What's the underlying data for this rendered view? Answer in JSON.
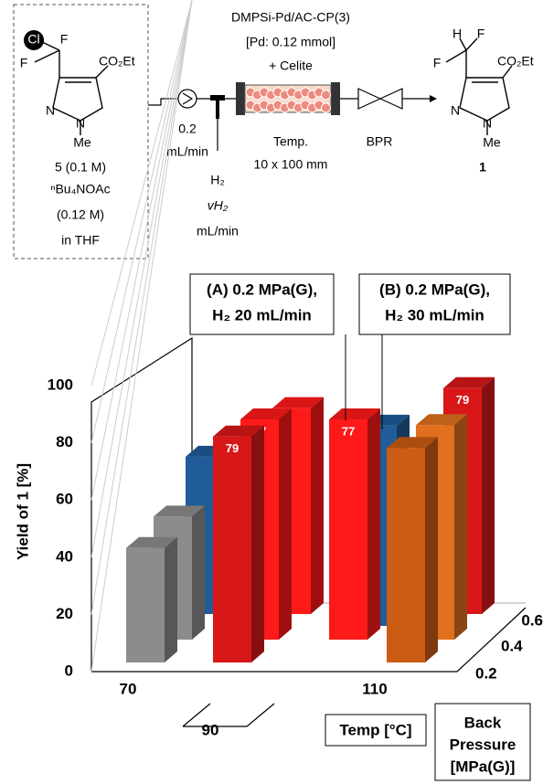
{
  "scheme": {
    "catalyst": [
      "DMPSi-Pd/AC-CP(3)",
      "[Pd: 0.12 mmol]",
      "+ Celite"
    ],
    "flow_rate": [
      "0.2",
      "mL/min"
    ],
    "column": [
      "Temp.",
      "10  x 100 mm"
    ],
    "bpr": "BPR",
    "gas": [
      "H₂",
      "vH₂",
      "mL/min"
    ],
    "reactant_atoms": [
      "Cl",
      "F",
      "F",
      "CO₂Et",
      "N",
      "N",
      "Me"
    ],
    "reactant_info": [
      "5 (0.1 M)",
      "ⁿBu₄NOAc",
      "(0.12 M)",
      "in THF"
    ],
    "product_atoms": [
      "H",
      "F",
      "F",
      "CO₂Et",
      "N",
      "N",
      "Me"
    ],
    "product_number": "1"
  },
  "chart_data": {
    "type": "bar3d",
    "y_label": "Yield of 1 [%]",
    "ylim": [
      0,
      100
    ],
    "yticks": [
      0,
      20,
      40,
      60,
      80,
      100
    ],
    "temperatures": [
      "70",
      "90",
      "110"
    ],
    "pressures": [
      "0.2",
      "0.4",
      "0.6"
    ],
    "x_label": "Temp [°C]",
    "z_label": [
      "Back",
      "Pressure",
      "[MPa(G)]"
    ],
    "annotations": [
      {
        "lines": [
          "(A) 0.2 MPa(G),",
          "H₂ 20 mL/min"
        ]
      },
      {
        "lines": [
          "(B) 0.2 MPa(G),",
          "H₂ 30 mL/min"
        ]
      }
    ],
    "bars": [
      {
        "value": 40,
        "color": "#8c8c8c",
        "labeled": false
      },
      {
        "value": 43,
        "color": "#8c8c8c",
        "labeled": false
      },
      {
        "value": 55,
        "color": "#1f5c99",
        "labeled": false
      },
      {
        "value": 79,
        "color": "#d81818",
        "labeled": true
      },
      {
        "value": 77,
        "color": "#ff1a1a",
        "labeled": true
      },
      {
        "value": 72,
        "color": "#ff1a1a",
        "labeled": false
      },
      {
        "value": 77,
        "color": "#ff1a1a",
        "labeled": true
      },
      {
        "value": 70,
        "color": "#1f5c99",
        "labeled": false
      },
      {
        "value": 75,
        "color": "#cc5c14",
        "labeled": false
      },
      {
        "value": 75,
        "color": "#e0701e",
        "labeled": false
      },
      {
        "value": 79,
        "color": "#d81818",
        "labeled": true
      }
    ]
  }
}
